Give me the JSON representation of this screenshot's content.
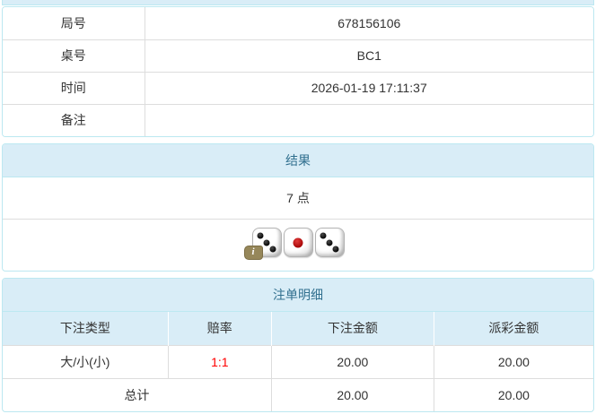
{
  "info_table": {
    "rows": [
      {
        "label": "局号",
        "value": "678156106"
      },
      {
        "label": "桌号",
        "value": "BC1"
      },
      {
        "label": "时间",
        "value": "2026-01-19 17:11:37"
      },
      {
        "label": "备注",
        "value": ""
      }
    ]
  },
  "result_panel": {
    "title": "结果",
    "points": "7 点",
    "dice": [
      {
        "value": 3,
        "color": "black"
      },
      {
        "value": 1,
        "color": "red"
      },
      {
        "value": 3,
        "color": "black"
      }
    ],
    "info_icon": "i"
  },
  "bets_panel": {
    "title": "注单明细",
    "columns": [
      "下注类型",
      "赔率",
      "下注金额",
      "派彩金额"
    ],
    "rows": [
      {
        "type": "大/小(小)",
        "odds": "1:1",
        "bet": "20.00",
        "payout": "20.00"
      }
    ],
    "total": {
      "label": "总计",
      "bet": "20.00",
      "payout": "20.00"
    }
  },
  "colors": {
    "heading_bg": "#d9edf7",
    "heading_text": "#31708f",
    "panel_border": "#bce8f1",
    "inner_border": "#dddddd",
    "odds_red": "#ff0000",
    "text": "#333333",
    "info_badge": "#96875a"
  }
}
